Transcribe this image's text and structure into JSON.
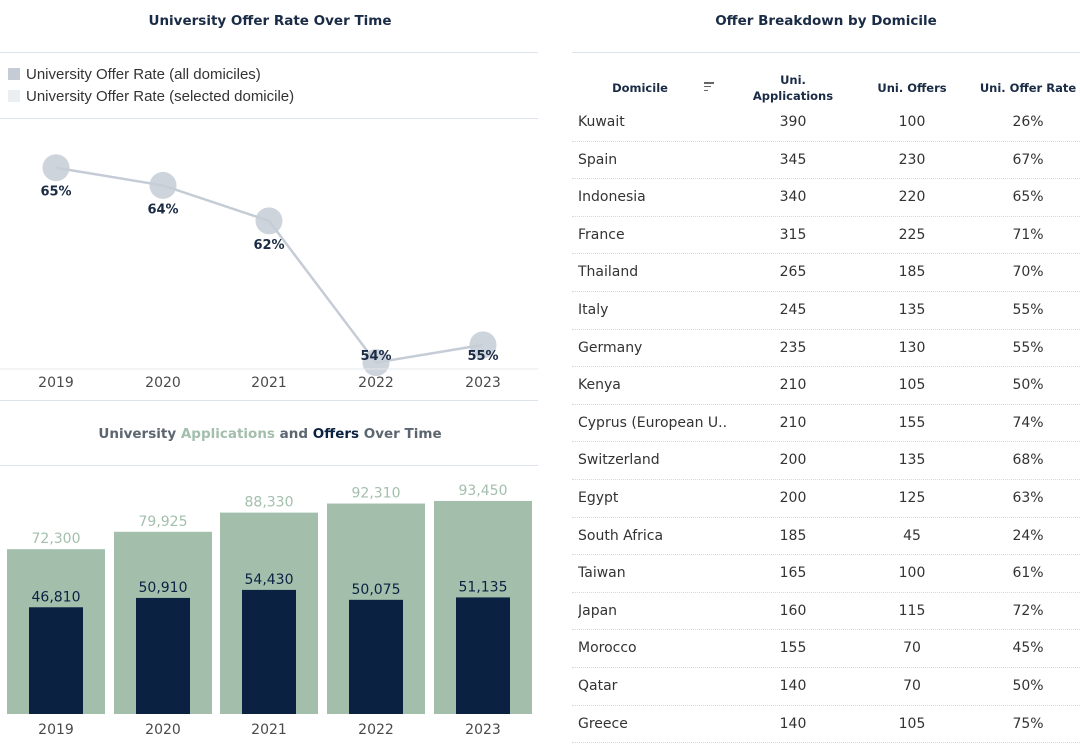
{
  "line_panel": {
    "title": "University Offer Rate Over Time",
    "legend": [
      {
        "label": "University Offer Rate (all domiciles)",
        "color": "#c5ccd6"
      },
      {
        "label": "University Offer Rate (selected domicile)",
        "color": "#eceff2"
      }
    ]
  },
  "bar_panel": {
    "title_parts": [
      {
        "text": "University ",
        "color": "#5c6670"
      },
      {
        "text": "Applications",
        "color": "#a3bfac"
      },
      {
        "text": " and ",
        "color": "#5c6670"
      },
      {
        "text": "Offers",
        "color": "#0b2142"
      },
      {
        "text": " Over Time",
        "color": "#5c6670"
      }
    ]
  },
  "table": {
    "title": "Offer Breakdown by Domicile",
    "headers": [
      "Domicile",
      "Uni. Applications",
      "Uni. Offers",
      "Uni. Offer Rate"
    ],
    "rows": [
      {
        "domicile": "Kuwait",
        "applications": "390",
        "offers": "100",
        "rate": "26%"
      },
      {
        "domicile": "Spain",
        "applications": "345",
        "offers": "230",
        "rate": "67%"
      },
      {
        "domicile": "Indonesia",
        "applications": "340",
        "offers": "220",
        "rate": "65%"
      },
      {
        "domicile": "France",
        "applications": "315",
        "offers": "225",
        "rate": "71%"
      },
      {
        "domicile": "Thailand",
        "applications": "265",
        "offers": "185",
        "rate": "70%"
      },
      {
        "domicile": "Italy",
        "applications": "245",
        "offers": "135",
        "rate": "55%"
      },
      {
        "domicile": "Germany",
        "applications": "235",
        "offers": "130",
        "rate": "55%"
      },
      {
        "domicile": "Kenya",
        "applications": "210",
        "offers": "105",
        "rate": "50%"
      },
      {
        "domicile": "Cyprus (European U..",
        "applications": "210",
        "offers": "155",
        "rate": "74%"
      },
      {
        "domicile": "Switzerland",
        "applications": "200",
        "offers": "135",
        "rate": "68%"
      },
      {
        "domicile": "Egypt",
        "applications": "200",
        "offers": "125",
        "rate": "63%"
      },
      {
        "domicile": "South Africa",
        "applications": "185",
        "offers": "45",
        "rate": "24%"
      },
      {
        "domicile": "Taiwan",
        "applications": "165",
        "offers": "100",
        "rate": "61%"
      },
      {
        "domicile": "Japan",
        "applications": "160",
        "offers": "115",
        "rate": "72%"
      },
      {
        "domicile": "Morocco",
        "applications": "155",
        "offers": "70",
        "rate": "45%"
      },
      {
        "domicile": "Qatar",
        "applications": "140",
        "offers": "70",
        "rate": "50%"
      },
      {
        "domicile": "Greece",
        "applications": "140",
        "offers": "105",
        "rate": "75%"
      }
    ]
  },
  "chart_data": [
    {
      "type": "line",
      "title": "University Offer Rate Over Time",
      "x": [
        "2019",
        "2020",
        "2021",
        "2022",
        "2023"
      ],
      "series": [
        {
          "name": "University Offer Rate (all domiciles)",
          "values": [
            65,
            64,
            62,
            54,
            55
          ],
          "labels": [
            "65%",
            "64%",
            "62%",
            "54%",
            "55%"
          ],
          "color": "#c5ccd6"
        }
      ],
      "ylim": [
        52,
        66
      ],
      "xlabel": "",
      "ylabel": ""
    },
    {
      "type": "bar",
      "title": "University Applications and Offers Over Time",
      "categories": [
        "2019",
        "2020",
        "2021",
        "2022",
        "2023"
      ],
      "series": [
        {
          "name": "Applications",
          "values": [
            72300,
            79925,
            88330,
            92310,
            93450
          ],
          "labels": [
            "72,300",
            "79,925",
            "88,330",
            "92,310",
            "93,450"
          ],
          "color": "#a3bfac"
        },
        {
          "name": "Offers",
          "values": [
            46810,
            50910,
            54430,
            50075,
            51135
          ],
          "labels": [
            "46,810",
            "50,910",
            "54,430",
            "50,075",
            "51,135"
          ],
          "color": "#0b2142"
        }
      ],
      "ylim": [
        0,
        100000
      ],
      "xlabel": "",
      "ylabel": ""
    }
  ]
}
